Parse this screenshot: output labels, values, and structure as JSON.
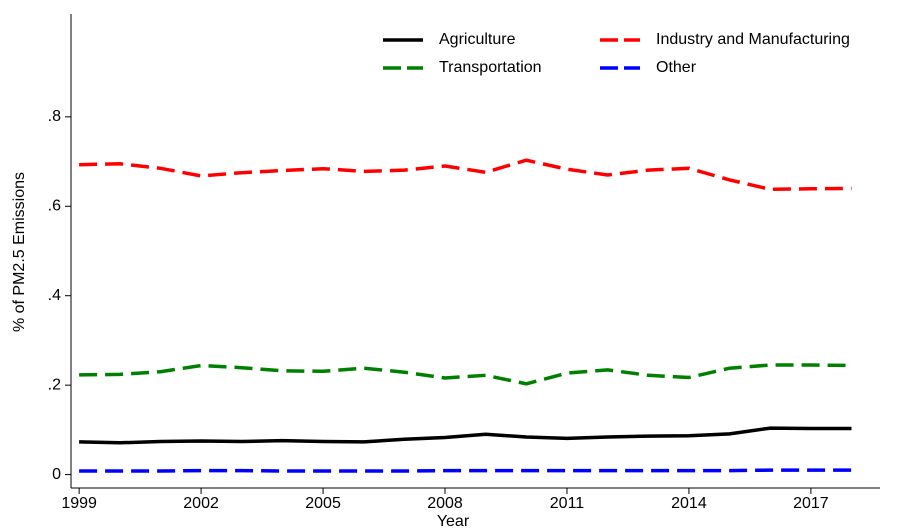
{
  "chart_data": {
    "type": "line",
    "x_label": "Year",
    "y_label": "% of PM2.5 Emissions",
    "x": [
      1999,
      2000,
      2001,
      2002,
      2003,
      2004,
      2005,
      2006,
      2007,
      2008,
      2009,
      2010,
      2011,
      2012,
      2013,
      2014,
      2015,
      2016,
      2017,
      2018
    ],
    "series": [
      {
        "name": "Agriculture",
        "color": "#000000",
        "dashed": false,
        "values": [
          0.073,
          0.071,
          0.074,
          0.075,
          0.074,
          0.076,
          0.074,
          0.073,
          0.079,
          0.083,
          0.09,
          0.084,
          0.081,
          0.084,
          0.086,
          0.087,
          0.091,
          0.104,
          0.103,
          0.103
        ]
      },
      {
        "name": "Industry and Manufacturing",
        "color": "#ff0000",
        "dashed": true,
        "values": [
          0.693,
          0.695,
          0.685,
          0.668,
          0.675,
          0.68,
          0.684,
          0.678,
          0.681,
          0.69,
          0.676,
          0.703,
          0.683,
          0.67,
          0.681,
          0.685,
          0.659,
          0.638,
          0.639,
          0.64
        ]
      },
      {
        "name": "Transportation",
        "color": "#008000",
        "dashed": true,
        "values": [
          0.223,
          0.224,
          0.23,
          0.244,
          0.239,
          0.232,
          0.231,
          0.238,
          0.229,
          0.216,
          0.222,
          0.203,
          0.227,
          0.234,
          0.222,
          0.217,
          0.238,
          0.245,
          0.245,
          0.244
        ]
      },
      {
        "name": "Other",
        "color": "#0000ff",
        "dashed": true,
        "values": [
          0.008,
          0.008,
          0.008,
          0.009,
          0.009,
          0.008,
          0.008,
          0.008,
          0.008,
          0.009,
          0.009,
          0.009,
          0.009,
          0.009,
          0.009,
          0.009,
          0.009,
          0.01,
          0.01,
          0.01
        ]
      }
    ],
    "xlim": [
      1998.8,
      2018.7
    ],
    "xticks": [
      1999,
      2002,
      2005,
      2008,
      2011,
      2014,
      2017
    ],
    "ylim": [
      -0.03,
      1.03
    ],
    "yticks": [
      0,
      {
        "value": 0.2,
        "label": ".2"
      },
      {
        "value": 0.4,
        "label": ".4"
      },
      {
        "value": 0.6,
        "label": ".6"
      },
      {
        "value": 0.8,
        "label": ".8"
      }
    ],
    "grid": false,
    "legend": "top-right"
  }
}
